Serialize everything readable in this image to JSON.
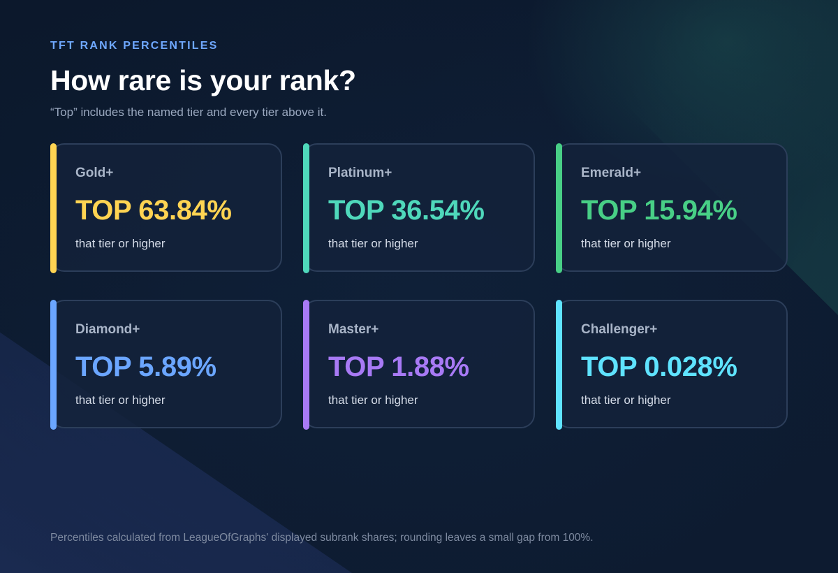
{
  "header": {
    "eyebrow": "TFT RANK PERCENTILES",
    "title": "How rare is your rank?",
    "subtitle": "“Top” includes the named tier and every tier above it."
  },
  "cards": [
    {
      "tier": "Gold+",
      "value": "TOP 63.84%",
      "caption": "that tier or higher",
      "color": "#ffd452"
    },
    {
      "tier": "Platinum+",
      "value": "TOP 36.54%",
      "caption": "that tier or higher",
      "color": "#4fd8bb"
    },
    {
      "tier": "Emerald+",
      "value": "TOP 15.94%",
      "caption": "that tier or higher",
      "color": "#48cf86"
    },
    {
      "tier": "Diamond+",
      "value": "TOP 5.89%",
      "caption": "that tier or higher",
      "color": "#6ba6ff"
    },
    {
      "tier": "Master+",
      "value": "TOP 1.88%",
      "caption": "that tier or higher",
      "color": "#a87af5"
    },
    {
      "tier": "Challenger+",
      "value": "TOP 0.028%",
      "caption": "that tier or higher",
      "color": "#5fe3ff"
    }
  ],
  "footer": {
    "note": "Percentiles calculated from LeagueOfGraphs' displayed subrank shares; rounding leaves a small gap from 100%."
  }
}
